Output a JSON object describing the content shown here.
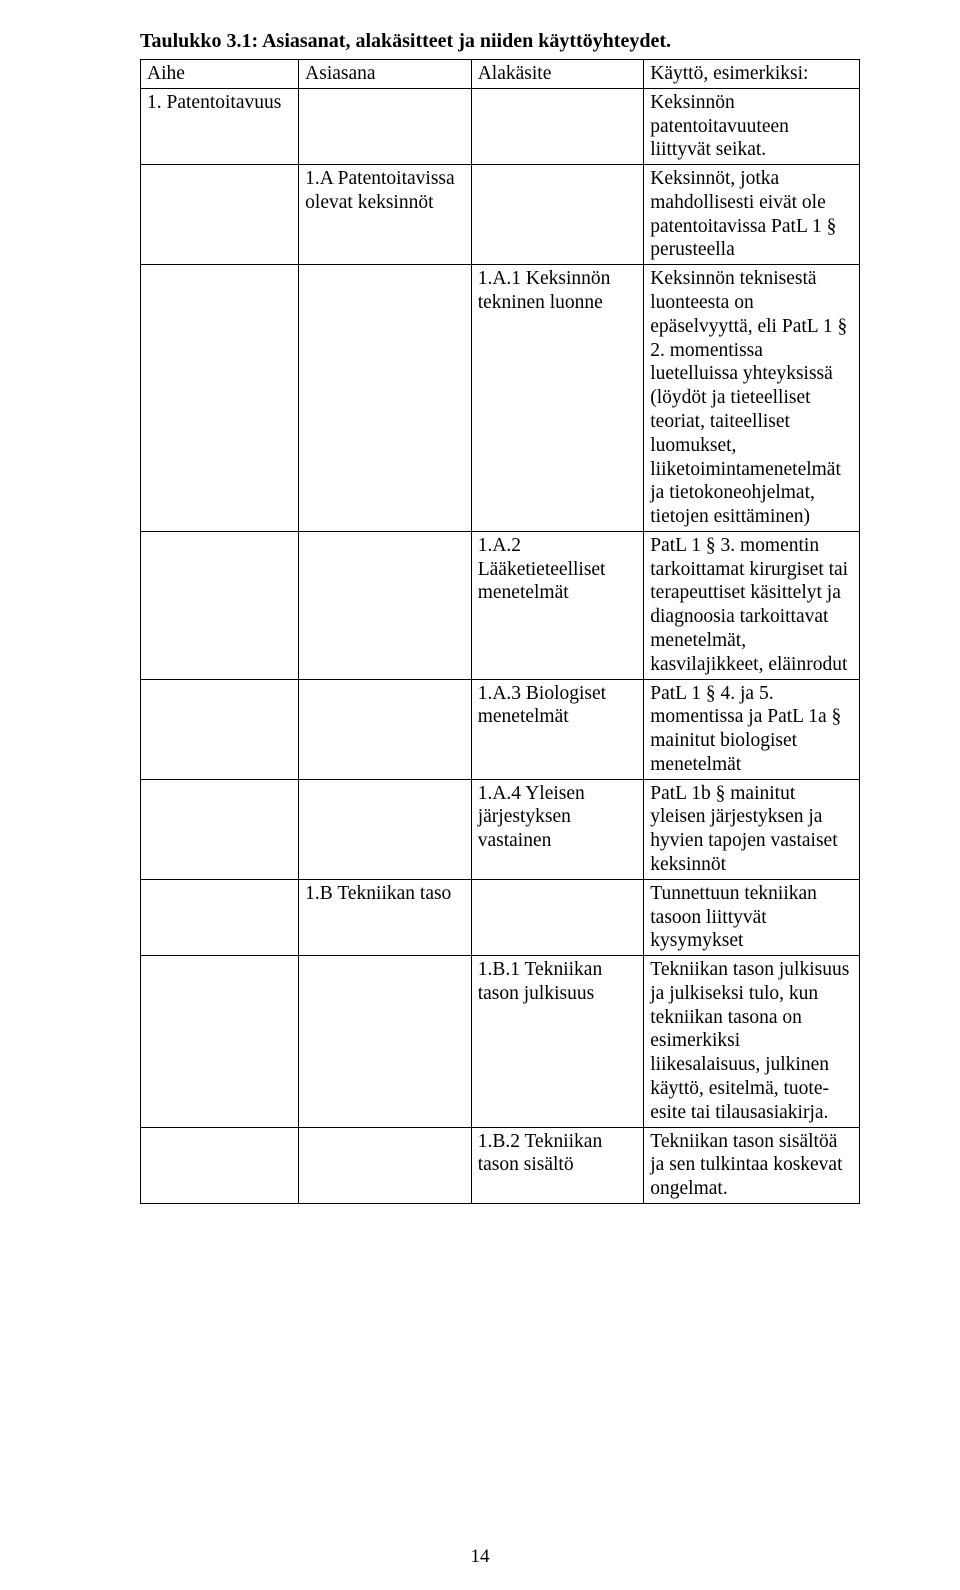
{
  "caption": "Taulukko 3.1: Asiasanat, alakäsitteet ja niiden käyttöyhteydet.",
  "header": {
    "c1": "Aihe",
    "c2": "Asiasana",
    "c3": "Alakäsite",
    "c4": "Käyttö, esimerkiksi:"
  },
  "rows": [
    {
      "c1": "1. Patentoitavuus",
      "c2": "",
      "c3": "",
      "c4": "Keksinnön patentoitavuuteen liittyvät seikat."
    },
    {
      "c1": "",
      "c2": "1.A Patentoitavissa olevat keksinnöt",
      "c3": "",
      "c4": "Keksinnöt, jotka mahdollisesti eivät ole patentoitavissa PatL 1 § perusteella"
    },
    {
      "c1": "",
      "c2": "",
      "c3": "1.A.1 Keksinnön tekninen luonne",
      "c4": "Keksinnön teknisestä luonteesta on epäselvyyttä, eli PatL 1 § 2. momentissa luetelluissa yhteyksissä (löydöt ja tieteelliset teoriat, taiteelliset luomukset, liiketoimintamenetelmät ja tietokoneohjelmat, tietojen esittäminen)"
    },
    {
      "c1": "",
      "c2": "",
      "c3": "1.A.2 Lääketieteelliset menetelmät",
      "c4": "PatL 1 § 3. momentin tarkoittamat kirurgiset tai terapeuttiset käsittelyt ja diagnoosia tarkoittavat menetelmät, kasvilajikkeet, eläinrodut"
    },
    {
      "c1": "",
      "c2": "",
      "c3": "1.A.3 Biologiset menetelmät",
      "c4": "PatL 1 § 4. ja 5. momentissa ja PatL 1a § mainitut biologiset menetelmät"
    },
    {
      "c1": "",
      "c2": "",
      "c3": "1.A.4 Yleisen järjestyksen vastainen",
      "c4": "PatL 1b § mainitut yleisen järjestyksen ja hyvien tapojen vastaiset keksinnöt"
    },
    {
      "c1": "",
      "c2": "1.B Tekniikan taso",
      "c3": "",
      "c4": "Tunnettuun tekniikan tasoon liittyvät kysymykset"
    },
    {
      "c1": "",
      "c2": "",
      "c3": "1.B.1 Tekniikan tason julkisuus",
      "c4": "Tekniikan tason julkisuus ja julkiseksi tulo, kun tekniikan tasona on esimerkiksi liikesalaisuus, julkinen käyttö, esitelmä, tuote-esite tai tilausasiakirja."
    },
    {
      "c1": "",
      "c2": "",
      "c3": "1.B.2 Tekniikan tason sisältö",
      "c4": "Tekniikan tason sisältöä ja sen tulkintaa koskevat ongelmat."
    }
  ],
  "page_number": "14"
}
